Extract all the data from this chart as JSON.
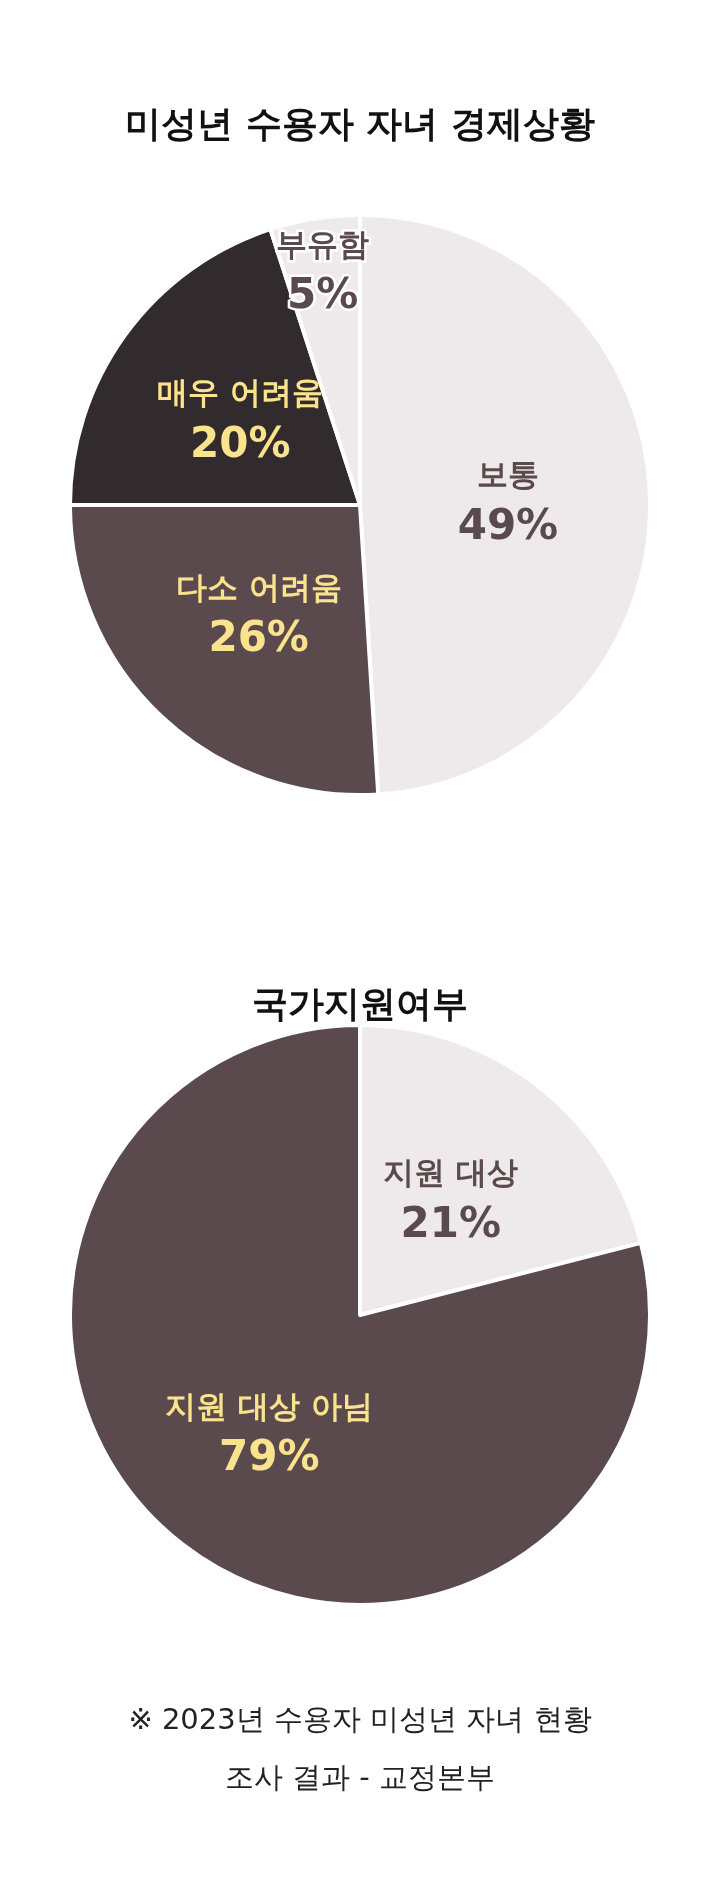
{
  "chart_data": [
    {
      "type": "pie",
      "title": "미성년 수용자 자녀 경제상황",
      "categories": [
        "보통",
        "다소 어려움",
        "매우 어려움",
        "부유함"
      ],
      "values": [
        49,
        26,
        20,
        5
      ],
      "colors": [
        "#eeeaeb",
        "#5a4a4d",
        "#322b2d",
        "#eeeaeb"
      ],
      "value_labels": [
        "49%",
        "26%",
        "20%",
        "5%"
      ],
      "legend": false
    },
    {
      "type": "pie",
      "title": "국가지원여부",
      "categories": [
        "지원 대상",
        "지원 대상 아님"
      ],
      "values": [
        21,
        79
      ],
      "colors": [
        "#eeeaeb",
        "#5a4a4d"
      ],
      "value_labels": [
        "21%",
        "79%"
      ],
      "legend": false,
      "annotations": [
        "※ 2023년 수용자 미성년 자녀 현황조사 결과 - 교정본부"
      ]
    }
  ]
}
